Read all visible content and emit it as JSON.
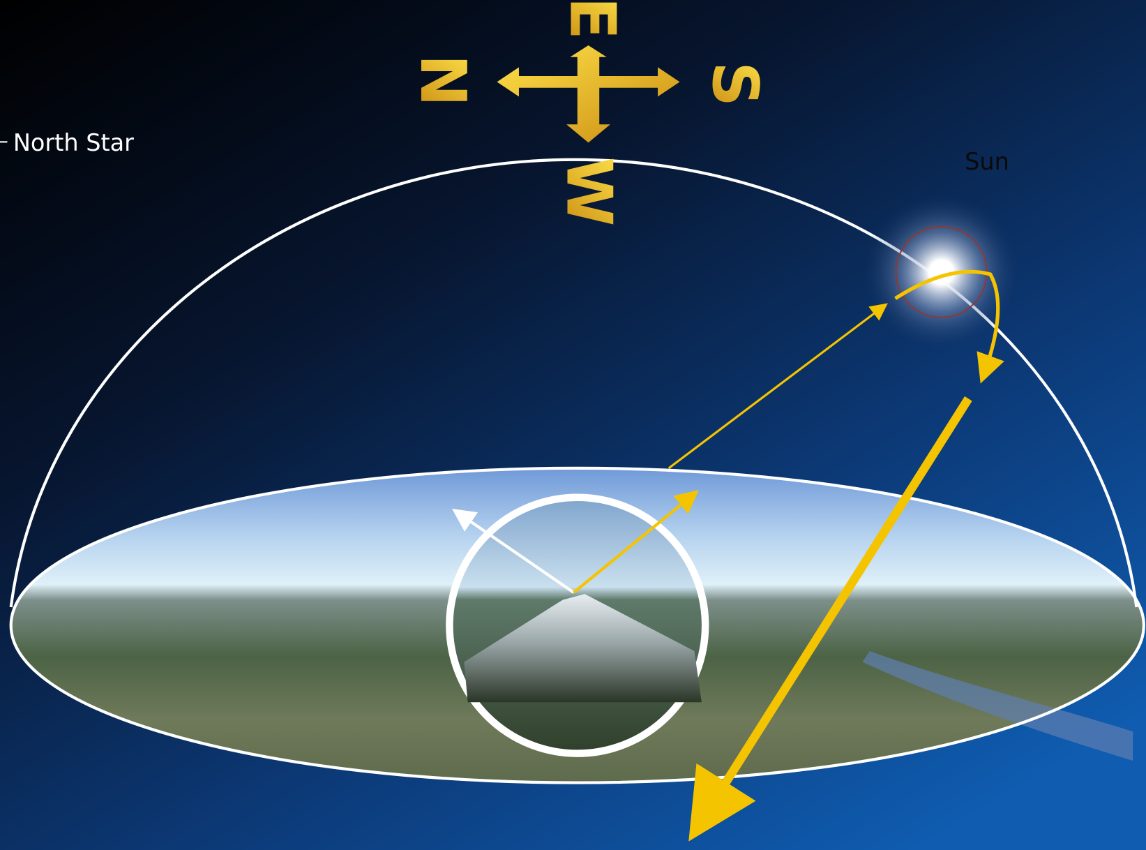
{
  "labels": {
    "north_star": "North Star",
    "sun": "Sun"
  },
  "compass": {
    "north": "N",
    "east": "E",
    "south": "S",
    "west": "W"
  }
}
